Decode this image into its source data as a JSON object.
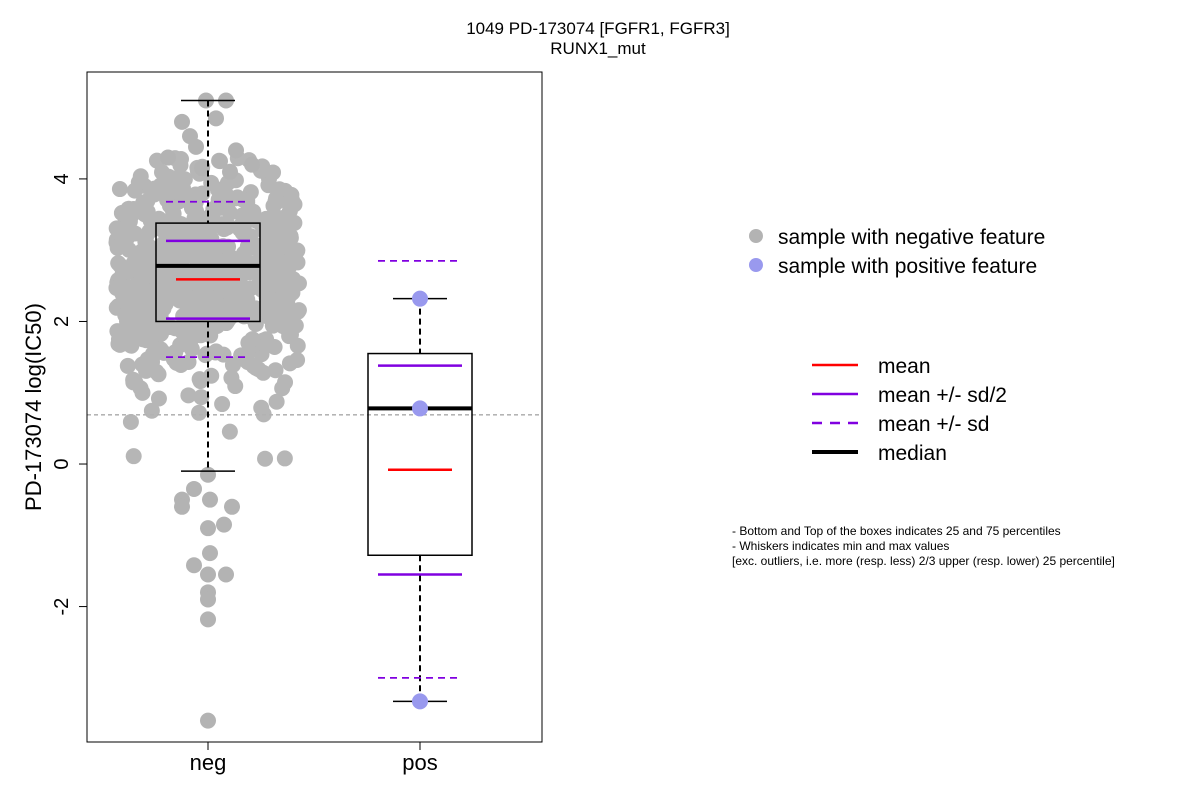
{
  "chart_data": {
    "type": "box",
    "title": "1049 PD-173074 [FGFR1, FGFR3]",
    "subtitle": "RUNX1_mut",
    "xlabel": "",
    "ylabel": "PD-173074 log(IC50)",
    "categories": [
      "neg",
      "pos"
    ],
    "ylim": [
      -3.9,
      5.5
    ],
    "yticks": [
      -2,
      0,
      2,
      4
    ],
    "reference_line": 0.69,
    "colors": {
      "neg_points": "#b3b3b3",
      "pos_points": "#9999ee",
      "mean": "#ff0000",
      "sd": "#8000e0",
      "median": "#000000",
      "reference": "#888888"
    },
    "boxes": [
      {
        "group": "neg",
        "whisker_low": -0.1,
        "q1": 2.0,
        "median": 2.78,
        "q3": 3.38,
        "whisker_high": 5.1,
        "mean": 2.59,
        "mean_minus_half_sd": 2.04,
        "mean_plus_half_sd": 3.13,
        "mean_minus_sd": 1.5,
        "mean_plus_sd": 3.68,
        "points": [
          5.1,
          5.1,
          4.8,
          4.85,
          4.6,
          4.45,
          4.4,
          4.3,
          4.25,
          4.2,
          4.15,
          4.1,
          -0.15,
          -0.35,
          -0.5,
          -0.5,
          -0.6,
          -0.6,
          -0.85,
          -0.9,
          -1.25,
          -1.42,
          -1.55,
          -1.55,
          -1.8,
          -1.9,
          -2.18,
          -3.6
        ]
      },
      {
        "group": "pos",
        "whisker_low": -3.33,
        "q1": -1.28,
        "median": 0.78,
        "q3": 1.55,
        "whisker_high": 2.32,
        "mean": -0.08,
        "mean_minus_half_sd": -1.55,
        "mean_plus_half_sd": 1.38,
        "mean_minus_sd": -3.0,
        "mean_plus_sd": 2.85,
        "points": [
          2.32,
          0.78,
          -3.33
        ]
      }
    ],
    "legend_points": [
      {
        "label": "sample with negative feature",
        "color": "#b3b3b3"
      },
      {
        "label": "sample with positive feature",
        "color": "#9999ee"
      }
    ],
    "legend_lines": [
      {
        "label": "mean",
        "color": "#ff0000",
        "style": "solid"
      },
      {
        "label": "mean +/- sd/2",
        "color": "#8000e0",
        "style": "solid"
      },
      {
        "label": "mean +/- sd",
        "color": "#8000e0",
        "style": "dashed"
      },
      {
        "label": "median",
        "color": "#000000",
        "style": "thick"
      }
    ]
  },
  "notes": [
    "- Bottom and Top of the boxes indicates 25 and 75 percentiles",
    "- Whiskers indicates min and max values",
    "[exc. outliers, i.e. more (resp. less) 2/3 upper (resp. lower) 25 percentile]"
  ]
}
